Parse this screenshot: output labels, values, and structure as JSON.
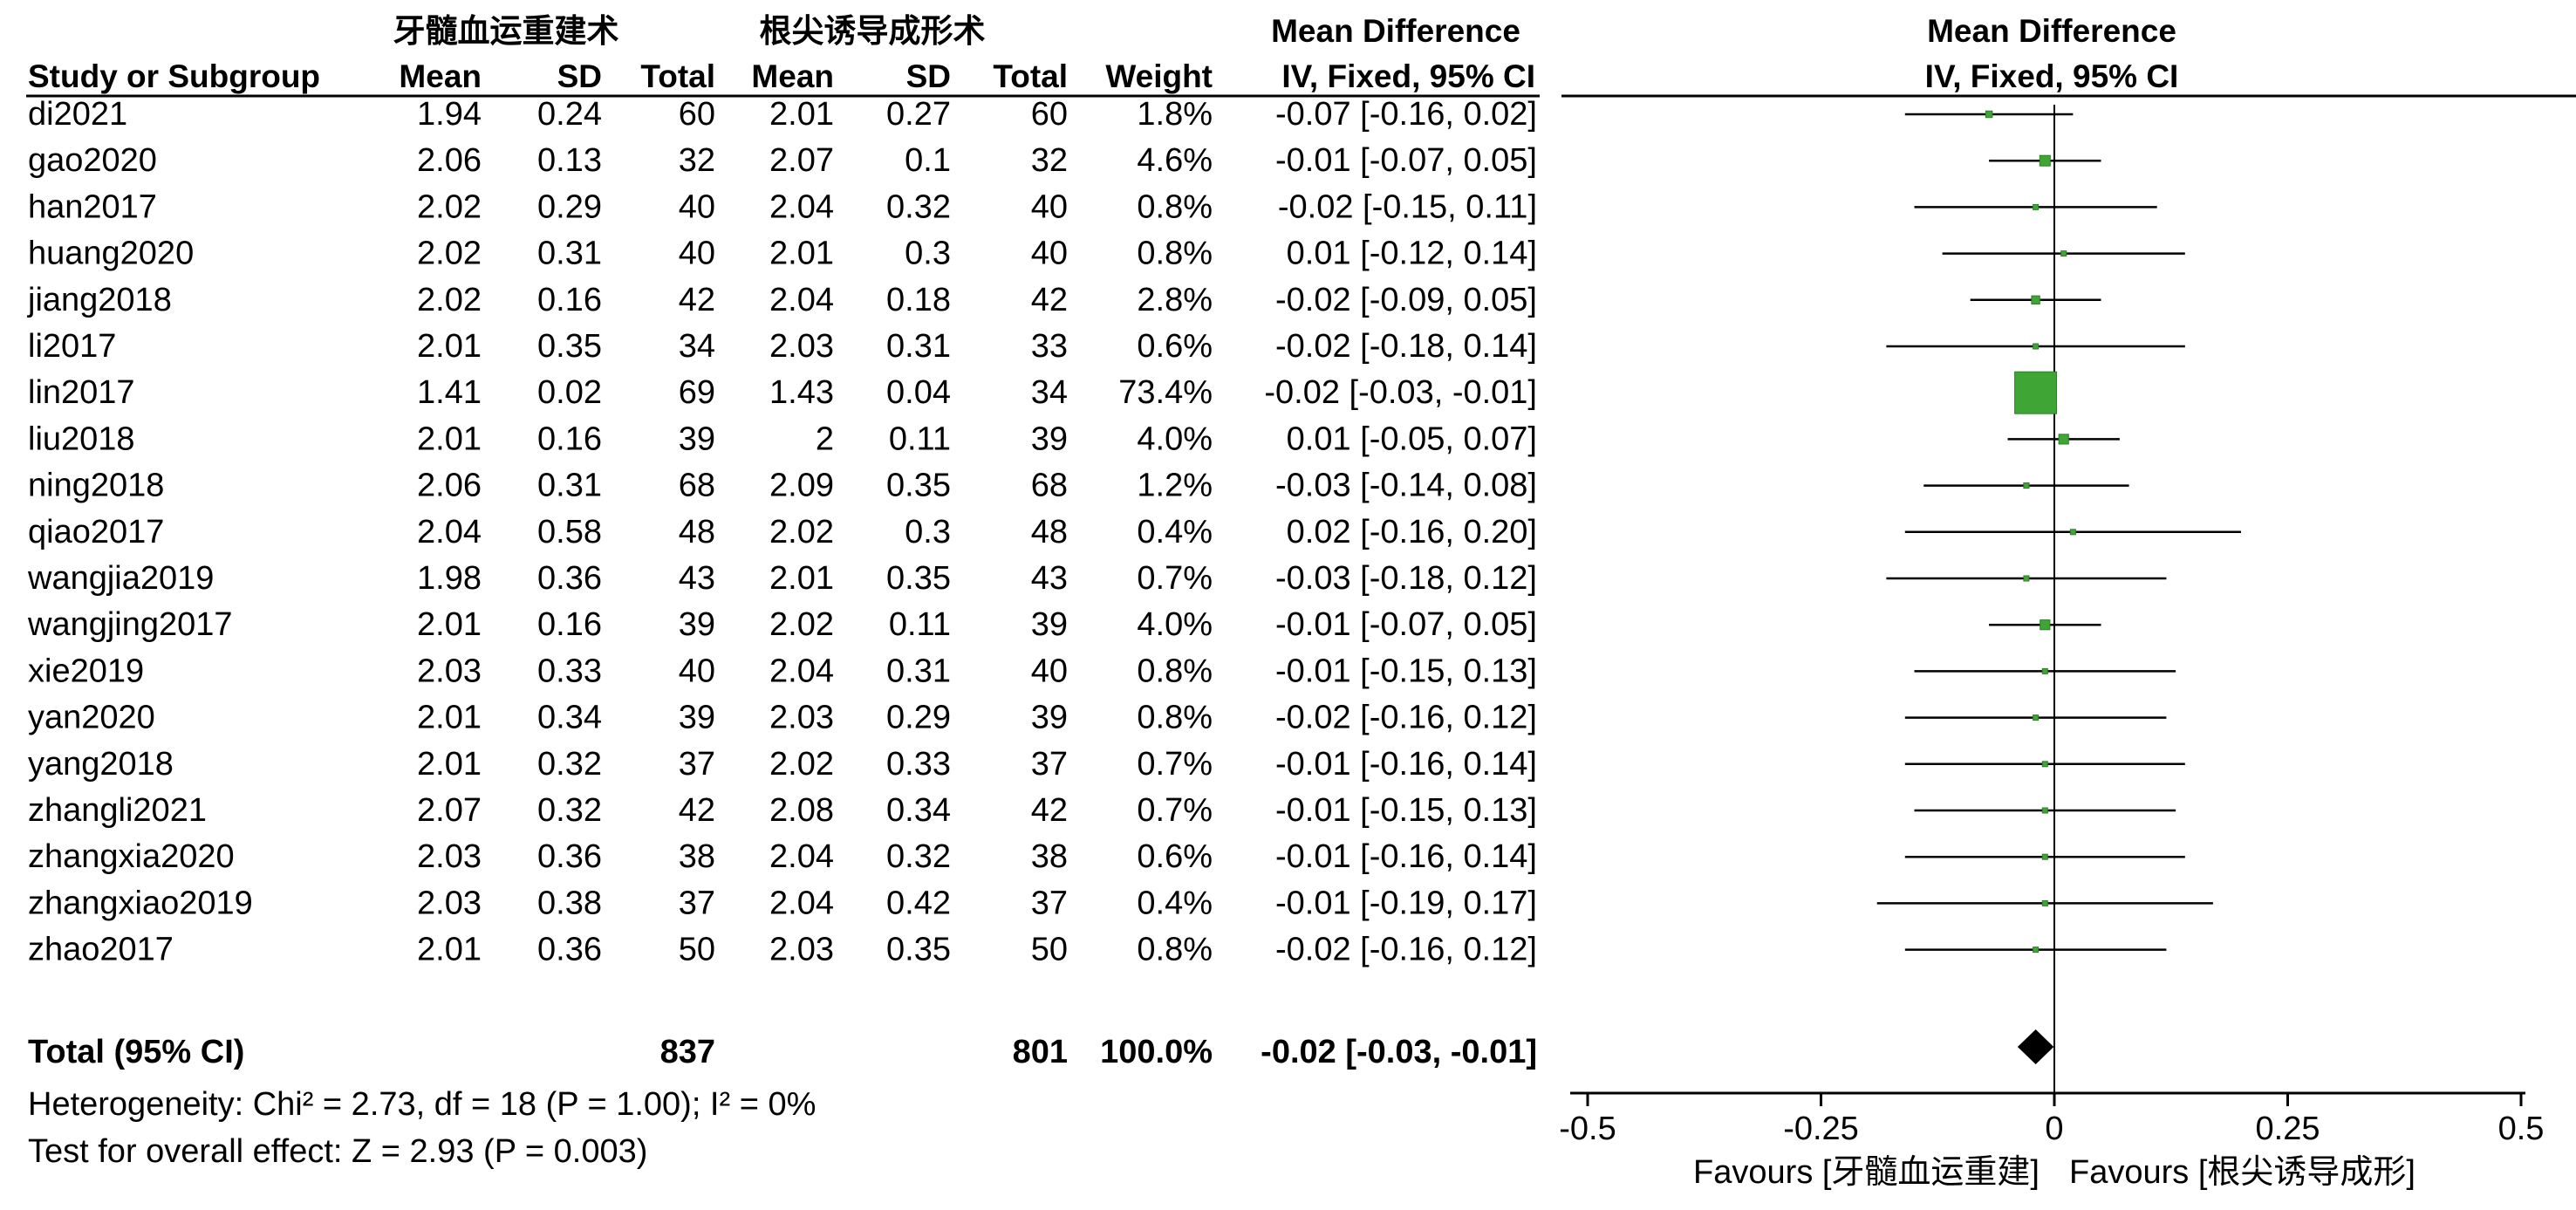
{
  "headers": {
    "group1": "牙髓血运重建术",
    "group2": "根尖诱导成形术",
    "effect_title": "Mean Difference",
    "plot_title": "Mean Difference",
    "study_col": "Study or Subgroup",
    "mean": "Mean",
    "sd": "SD",
    "total": "Total",
    "weight": "Weight",
    "method": "IV, Fixed, 95% CI",
    "plot_method": "IV, Fixed, 95% CI"
  },
  "rows": [
    {
      "study": "di2021",
      "m1": "1.94",
      "sd1": "0.24",
      "n1": "60",
      "m2": "2.01",
      "sd2": "0.27",
      "n2": "60",
      "weight": "1.8%",
      "ci": "-0.07 [-0.16, 0.02]"
    },
    {
      "study": "gao2020",
      "m1": "2.06",
      "sd1": "0.13",
      "n1": "32",
      "m2": "2.07",
      "sd2": "0.1",
      "n2": "32",
      "weight": "4.6%",
      "ci": "-0.01 [-0.07, 0.05]"
    },
    {
      "study": "han2017",
      "m1": "2.02",
      "sd1": "0.29",
      "n1": "40",
      "m2": "2.04",
      "sd2": "0.32",
      "n2": "40",
      "weight": "0.8%",
      "ci": "-0.02 [-0.15, 0.11]"
    },
    {
      "study": "huang2020",
      "m1": "2.02",
      "sd1": "0.31",
      "n1": "40",
      "m2": "2.01",
      "sd2": "0.3",
      "n2": "40",
      "weight": "0.8%",
      "ci": "0.01 [-0.12, 0.14]"
    },
    {
      "study": "jiang2018",
      "m1": "2.02",
      "sd1": "0.16",
      "n1": "42",
      "m2": "2.04",
      "sd2": "0.18",
      "n2": "42",
      "weight": "2.8%",
      "ci": "-0.02 [-0.09, 0.05]"
    },
    {
      "study": "li2017",
      "m1": "2.01",
      "sd1": "0.35",
      "n1": "34",
      "m2": "2.03",
      "sd2": "0.31",
      "n2": "33",
      "weight": "0.6%",
      "ci": "-0.02 [-0.18, 0.14]"
    },
    {
      "study": "lin2017",
      "m1": "1.41",
      "sd1": "0.02",
      "n1": "69",
      "m2": "1.43",
      "sd2": "0.04",
      "n2": "34",
      "weight": "73.4%",
      "ci": "-0.02 [-0.03, -0.01]"
    },
    {
      "study": "liu2018",
      "m1": "2.01",
      "sd1": "0.16",
      "n1": "39",
      "m2": "2",
      "sd2": "0.11",
      "n2": "39",
      "weight": "4.0%",
      "ci": "0.01 [-0.05, 0.07]"
    },
    {
      "study": "ning2018",
      "m1": "2.06",
      "sd1": "0.31",
      "n1": "68",
      "m2": "2.09",
      "sd2": "0.35",
      "n2": "68",
      "weight": "1.2%",
      "ci": "-0.03 [-0.14, 0.08]"
    },
    {
      "study": "qiao2017",
      "m1": "2.04",
      "sd1": "0.58",
      "n1": "48",
      "m2": "2.02",
      "sd2": "0.3",
      "n2": "48",
      "weight": "0.4%",
      "ci": "0.02 [-0.16, 0.20]"
    },
    {
      "study": "wangjia2019",
      "m1": "1.98",
      "sd1": "0.36",
      "n1": "43",
      "m2": "2.01",
      "sd2": "0.35",
      "n2": "43",
      "weight": "0.7%",
      "ci": "-0.03 [-0.18, 0.12]"
    },
    {
      "study": "wangjing2017",
      "m1": "2.01",
      "sd1": "0.16",
      "n1": "39",
      "m2": "2.02",
      "sd2": "0.11",
      "n2": "39",
      "weight": "4.0%",
      "ci": "-0.01 [-0.07, 0.05]"
    },
    {
      "study": "xie2019",
      "m1": "2.03",
      "sd1": "0.33",
      "n1": "40",
      "m2": "2.04",
      "sd2": "0.31",
      "n2": "40",
      "weight": "0.8%",
      "ci": "-0.01 [-0.15, 0.13]"
    },
    {
      "study": "yan2020",
      "m1": "2.01",
      "sd1": "0.34",
      "n1": "39",
      "m2": "2.03",
      "sd2": "0.29",
      "n2": "39",
      "weight": "0.8%",
      "ci": "-0.02 [-0.16, 0.12]"
    },
    {
      "study": "yang2018",
      "m1": "2.01",
      "sd1": "0.32",
      "n1": "37",
      "m2": "2.02",
      "sd2": "0.33",
      "n2": "37",
      "weight": "0.7%",
      "ci": "-0.01 [-0.16, 0.14]"
    },
    {
      "study": "zhangli2021",
      "m1": "2.07",
      "sd1": "0.32",
      "n1": "42",
      "m2": "2.08",
      "sd2": "0.34",
      "n2": "42",
      "weight": "0.7%",
      "ci": "-0.01 [-0.15, 0.13]"
    },
    {
      "study": "zhangxia2020",
      "m1": "2.03",
      "sd1": "0.36",
      "n1": "38",
      "m2": "2.04",
      "sd2": "0.32",
      "n2": "38",
      "weight": "0.6%",
      "ci": "-0.01 [-0.16, 0.14]"
    },
    {
      "study": "zhangxiao2019",
      "m1": "2.03",
      "sd1": "0.38",
      "n1": "37",
      "m2": "2.04",
      "sd2": "0.42",
      "n2": "37",
      "weight": "0.4%",
      "ci": "-0.01 [-0.19, 0.17]"
    },
    {
      "study": "zhao2017",
      "m1": "2.01",
      "sd1": "0.36",
      "n1": "50",
      "m2": "2.03",
      "sd2": "0.35",
      "n2": "50",
      "weight": "0.8%",
      "ci": "-0.02 [-0.16, 0.12]"
    }
  ],
  "total": {
    "label": "Total (95% CI)",
    "n1": "837",
    "n2": "801",
    "weight": "100.0%",
    "ci": "-0.02 [-0.03, -0.01]"
  },
  "footer": {
    "heterogeneity": "Heterogeneity: Chi² = 2.73, df = 18 (P = 1.00); I² = 0%",
    "overall": "Test for overall effect: Z = 2.93 (P = 0.003)"
  },
  "axis": {
    "ticks": [
      "-0.5",
      "-0.25",
      "0",
      "0.25",
      "0.5"
    ],
    "favours_left": "Favours [牙髓血运重建]",
    "favours_right": "Favours [根尖诱导成形]"
  },
  "colors": {
    "square": "#3fa535",
    "diamond": "#000000",
    "line": "#000000"
  },
  "chart_data": {
    "type": "forest",
    "xlim": [
      -0.5,
      0.5
    ],
    "xticks": [
      -0.5,
      -0.25,
      0,
      0.25,
      0.5
    ],
    "reference_line": 0,
    "grid": false,
    "studies": [
      {
        "name": "di2021",
        "md": -0.07,
        "lo": -0.16,
        "hi": 0.02,
        "weight": 1.8
      },
      {
        "name": "gao2020",
        "md": -0.01,
        "lo": -0.07,
        "hi": 0.05,
        "weight": 4.6
      },
      {
        "name": "han2017",
        "md": -0.02,
        "lo": -0.15,
        "hi": 0.11,
        "weight": 0.8
      },
      {
        "name": "huang2020",
        "md": 0.01,
        "lo": -0.12,
        "hi": 0.14,
        "weight": 0.8
      },
      {
        "name": "jiang2018",
        "md": -0.02,
        "lo": -0.09,
        "hi": 0.05,
        "weight": 2.8
      },
      {
        "name": "li2017",
        "md": -0.02,
        "lo": -0.18,
        "hi": 0.14,
        "weight": 0.6
      },
      {
        "name": "lin2017",
        "md": -0.02,
        "lo": -0.03,
        "hi": -0.01,
        "weight": 73.4
      },
      {
        "name": "liu2018",
        "md": 0.01,
        "lo": -0.05,
        "hi": 0.07,
        "weight": 4.0
      },
      {
        "name": "ning2018",
        "md": -0.03,
        "lo": -0.14,
        "hi": 0.08,
        "weight": 1.2
      },
      {
        "name": "qiao2017",
        "md": 0.02,
        "lo": -0.16,
        "hi": 0.2,
        "weight": 0.4
      },
      {
        "name": "wangjia2019",
        "md": -0.03,
        "lo": -0.18,
        "hi": 0.12,
        "weight": 0.7
      },
      {
        "name": "wangjing2017",
        "md": -0.01,
        "lo": -0.07,
        "hi": 0.05,
        "weight": 4.0
      },
      {
        "name": "xie2019",
        "md": -0.01,
        "lo": -0.15,
        "hi": 0.13,
        "weight": 0.8
      },
      {
        "name": "yan2020",
        "md": -0.02,
        "lo": -0.16,
        "hi": 0.12,
        "weight": 0.8
      },
      {
        "name": "yang2018",
        "md": -0.01,
        "lo": -0.16,
        "hi": 0.14,
        "weight": 0.7
      },
      {
        "name": "zhangli2021",
        "md": -0.01,
        "lo": -0.15,
        "hi": 0.13,
        "weight": 0.7
      },
      {
        "name": "zhangxia2020",
        "md": -0.01,
        "lo": -0.16,
        "hi": 0.14,
        "weight": 0.6
      },
      {
        "name": "zhangxiao2019",
        "md": -0.01,
        "lo": -0.19,
        "hi": 0.17,
        "weight": 0.4
      },
      {
        "name": "zhao2017",
        "md": -0.02,
        "lo": -0.16,
        "hi": 0.12,
        "weight": 0.8
      }
    ],
    "pooled": {
      "md": -0.02,
      "lo": -0.03,
      "hi": -0.01
    }
  }
}
